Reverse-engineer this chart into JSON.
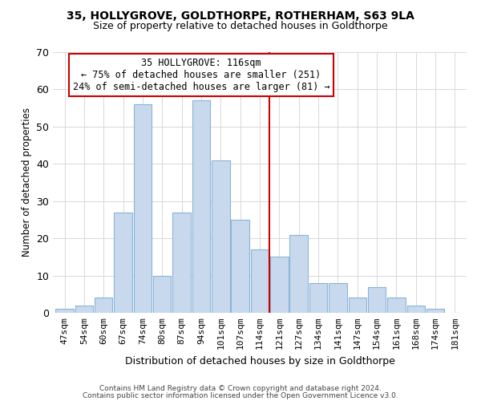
{
  "title_line1": "35, HOLLYGROVE, GOLDTHORPE, ROTHERHAM, S63 9LA",
  "title_line2": "Size of property relative to detached houses in Goldthorpe",
  "xlabel": "Distribution of detached houses by size in Goldthorpe",
  "ylabel": "Number of detached properties",
  "bar_labels": [
    "47sqm",
    "54sqm",
    "60sqm",
    "67sqm",
    "74sqm",
    "80sqm",
    "87sqm",
    "94sqm",
    "101sqm",
    "107sqm",
    "114sqm",
    "121sqm",
    "127sqm",
    "134sqm",
    "141sqm",
    "147sqm",
    "154sqm",
    "161sqm",
    "168sqm",
    "174sqm",
    "181sqm"
  ],
  "bar_values": [
    1,
    2,
    4,
    27,
    56,
    10,
    27,
    57,
    41,
    25,
    17,
    15,
    21,
    8,
    8,
    4,
    7,
    4,
    2,
    1,
    0
  ],
  "bar_color": "#c8d9ee",
  "bar_edge_color": "#8ab4d8",
  "vline_index": 10.5,
  "annotation_title": "35 HOLLYGROVE: 116sqm",
  "annotation_line1": "← 75% of detached houses are smaller (251)",
  "annotation_line2": "24% of semi-detached houses are larger (81) →",
  "annotation_box_color": "#ffffff",
  "annotation_box_edge_color": "#cc0000",
  "vline_color": "#cc0000",
  "ylim": [
    0,
    70
  ],
  "yticks": [
    0,
    10,
    20,
    30,
    40,
    50,
    60,
    70
  ],
  "footer_line1": "Contains HM Land Registry data © Crown copyright and database right 2024.",
  "footer_line2": "Contains public sector information licensed under the Open Government Licence v3.0.",
  "background_color": "#ffffff",
  "grid_color": "#d8d8d8",
  "title1_fontsize": 10,
  "title2_fontsize": 9,
  "annotation_fontsize": 8.5,
  "xlabel_fontsize": 9,
  "ylabel_fontsize": 8.5,
  "tick_fontsize": 8,
  "footer_fontsize": 6.5
}
